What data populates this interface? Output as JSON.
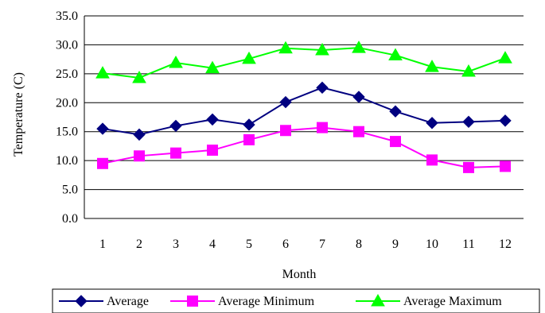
{
  "chart_data": {
    "type": "line",
    "title": "",
    "xlabel": "Month",
    "ylabel": "Temperature (C)",
    "categories": [
      "1",
      "2",
      "3",
      "4",
      "5",
      "6",
      "7",
      "8",
      "9",
      "10",
      "11",
      "12"
    ],
    "ylim": [
      0,
      35
    ],
    "yticks": [
      "0.0",
      "5.0",
      "10.0",
      "15.0",
      "20.0",
      "25.0",
      "30.0",
      "35.0"
    ],
    "grid": "horizontal",
    "legend_position": "bottom",
    "series": [
      {
        "name": "Average",
        "color": "#000080",
        "marker": "diamond",
        "values": [
          15.5,
          14.5,
          16.0,
          17.1,
          16.2,
          20.1,
          22.6,
          21.0,
          18.5,
          16.5,
          16.7,
          16.9
        ]
      },
      {
        "name": "Average Minimum",
        "color": "#FF00FF",
        "marker": "square",
        "values": [
          9.5,
          10.8,
          11.3,
          11.8,
          13.6,
          15.2,
          15.7,
          15.0,
          13.3,
          10.1,
          8.8,
          9.0
        ]
      },
      {
        "name": "Average Maximum",
        "color": "#00FF00",
        "marker": "triangle",
        "values": [
          25.1,
          24.3,
          26.9,
          26.0,
          27.6,
          29.4,
          29.1,
          29.5,
          28.2,
          26.2,
          25.4,
          27.7
        ]
      }
    ]
  }
}
